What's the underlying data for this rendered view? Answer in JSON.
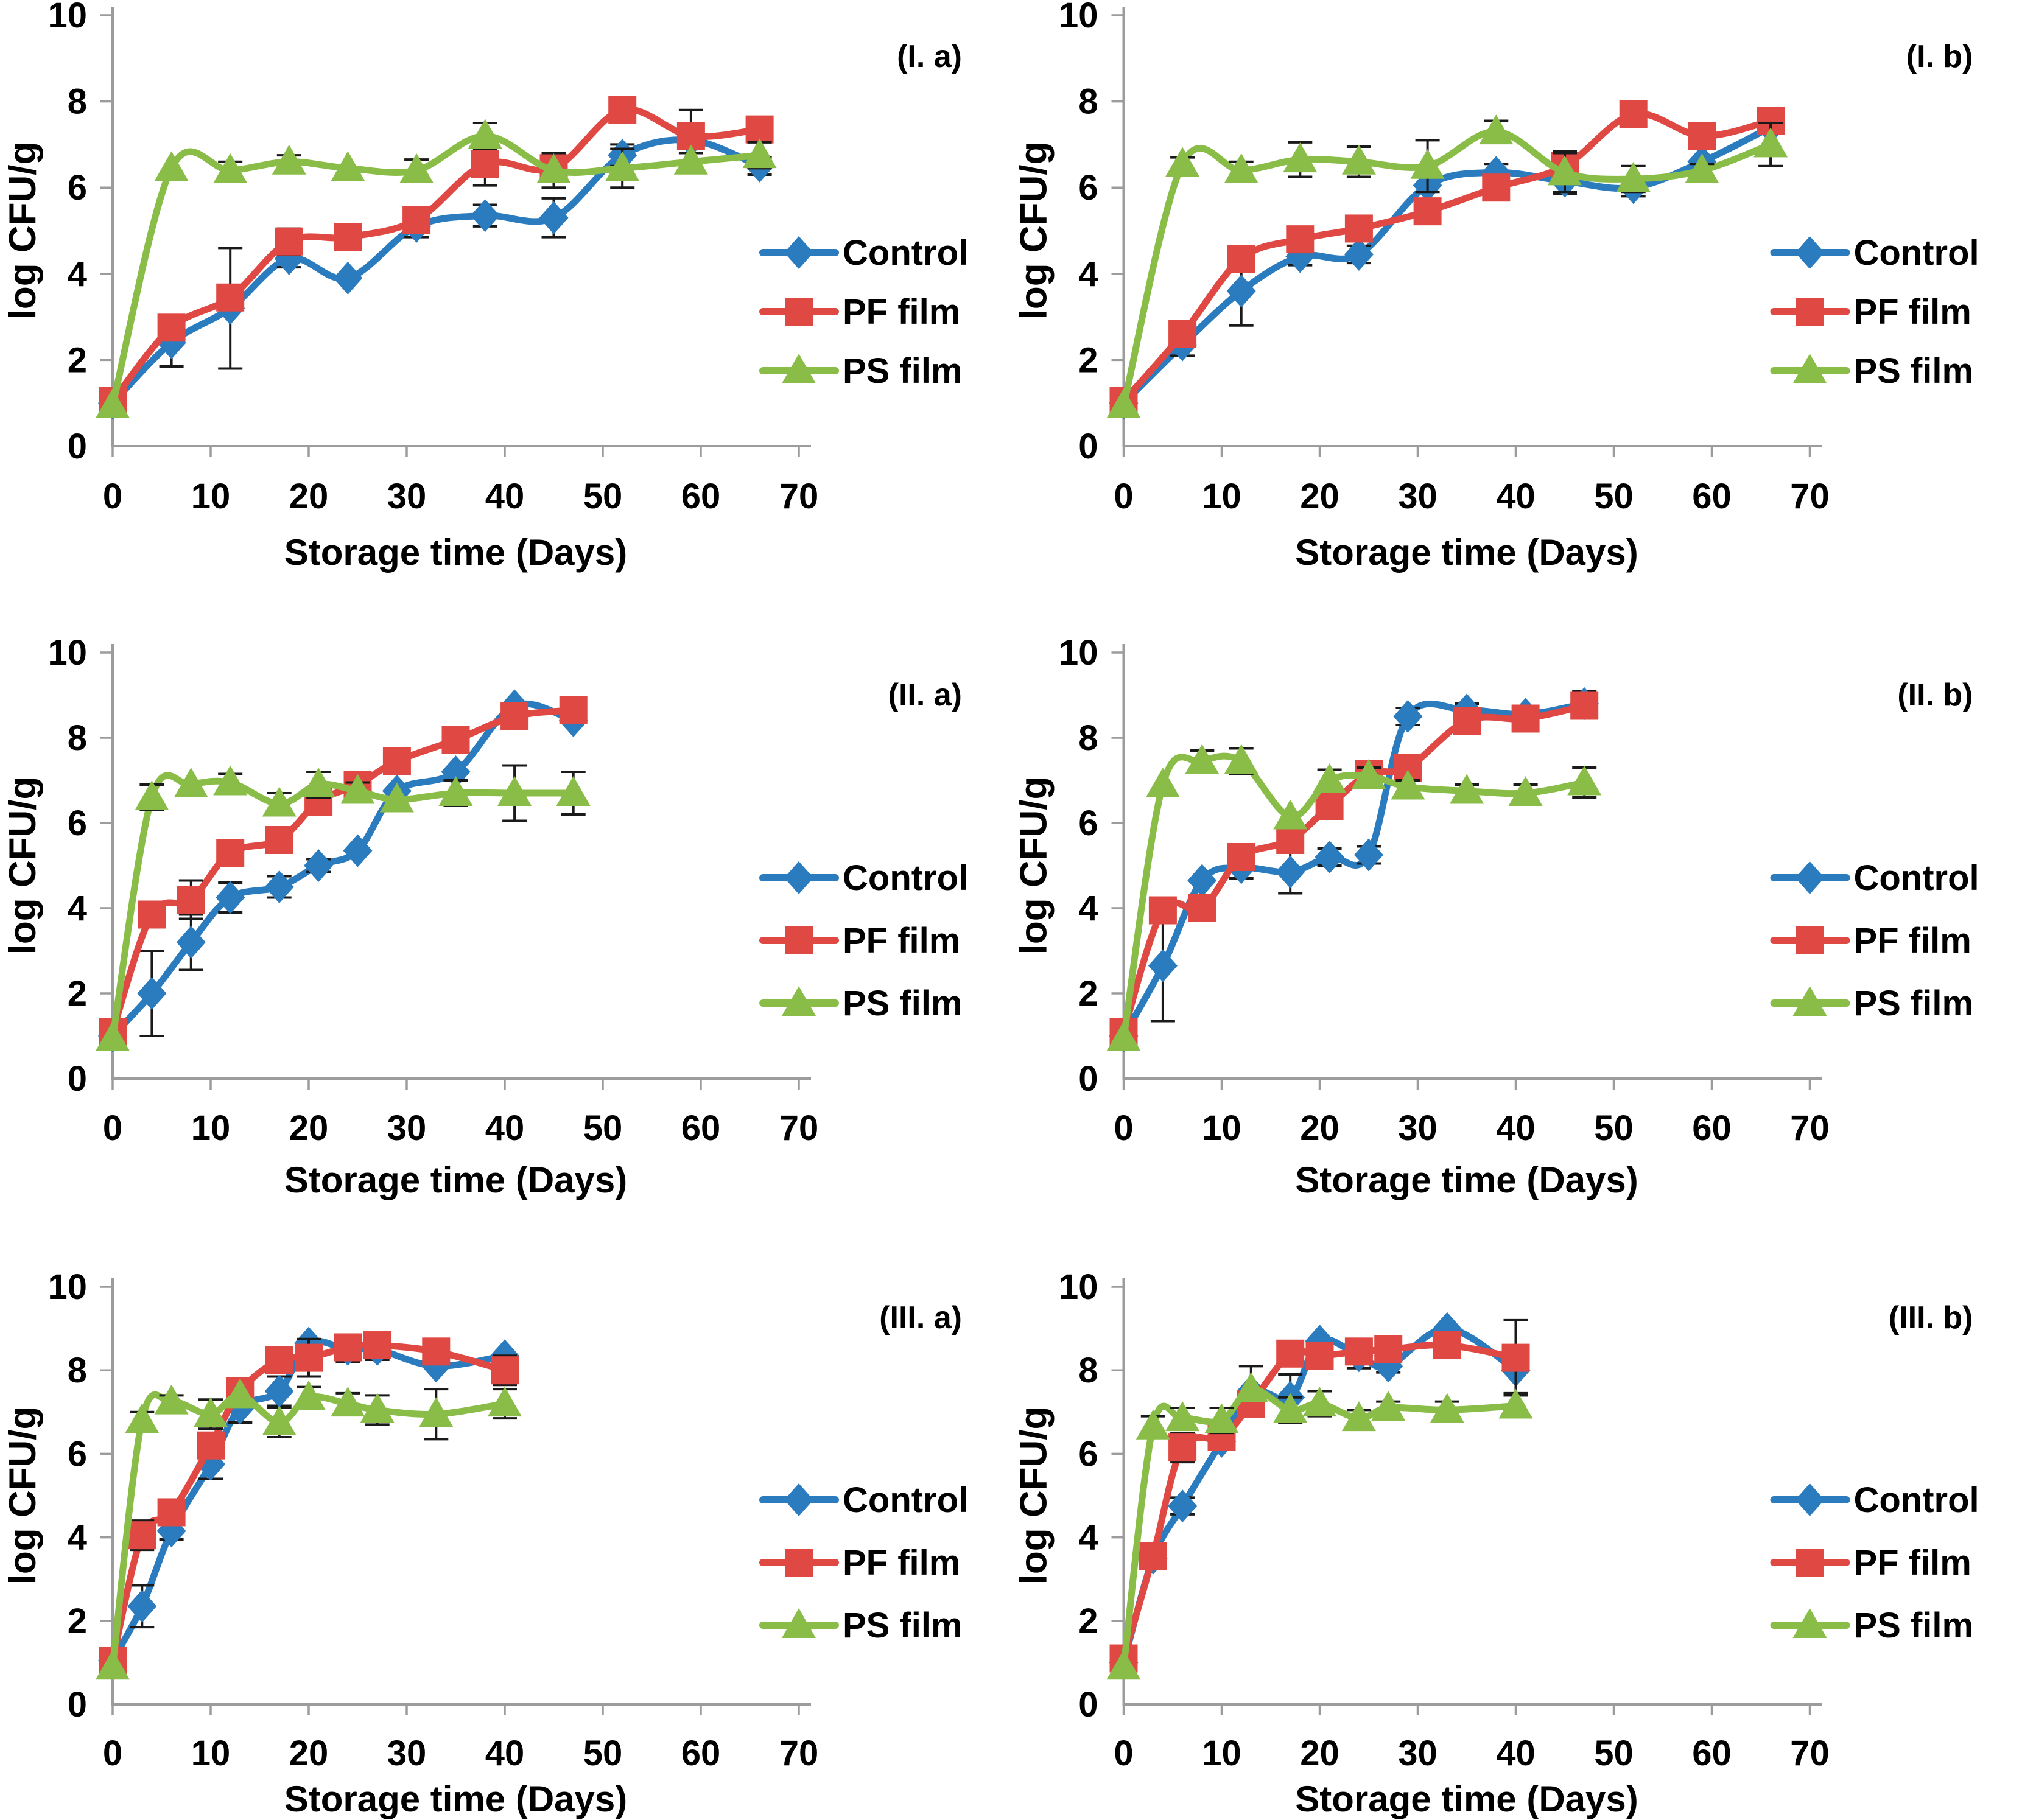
{
  "figure": {
    "background": "#ffffff",
    "axis_color": "#9c9c9c",
    "text_color": "#000000",
    "error_bar_color": "#1a1a1a",
    "series_colors": {
      "control": "#2b7bbf",
      "pf_film": "#e04843",
      "ps_film": "#8abd47"
    }
  },
  "chart_data": [
    {
      "type": "line",
      "panel_label": "(I. a)",
      "xlabel": "Storage time (Days)",
      "ylabel": "log CFU/g",
      "xlim": [
        0,
        70
      ],
      "ylim": [
        0,
        10
      ],
      "xticks": [
        0,
        10,
        20,
        30,
        40,
        50,
        60,
        70
      ],
      "yticks": [
        0,
        2,
        4,
        6,
        8,
        10
      ],
      "grid": false,
      "legend_position": "right",
      "x": [
        0,
        6,
        12,
        18,
        24,
        31,
        38,
        45,
        52,
        59,
        66
      ],
      "series": [
        {
          "name": "Control",
          "marker": "diamond",
          "color": "#2b7bbf",
          "values": [
            1.0,
            2.4,
            3.2,
            4.35,
            3.9,
            5.1,
            5.35,
            5.3,
            6.75,
            7.1,
            6.5
          ],
          "err": [
            0,
            0.55,
            1.4,
            0.2,
            0,
            0.25,
            0.25,
            0.45,
            0.25,
            0,
            0.2
          ]
        },
        {
          "name": "PF film",
          "marker": "square",
          "color": "#e04843",
          "values": [
            1.05,
            2.75,
            3.45,
            4.75,
            4.85,
            5.25,
            6.55,
            6.45,
            7.8,
            7.2,
            7.35
          ],
          "err": [
            0,
            0,
            0,
            0.3,
            0,
            0,
            0.5,
            0.2,
            0.2,
            0.6,
            0.25
          ]
        },
        {
          "name": "PS film",
          "marker": "triangle",
          "color": "#8abd47",
          "values": [
            0.95,
            6.45,
            6.4,
            6.6,
            6.45,
            6.4,
            7.2,
            6.4,
            6.45,
            6.6,
            6.75
          ],
          "err": [
            0,
            0,
            0.2,
            0.15,
            0,
            0.25,
            0.3,
            0.4,
            0.45,
            0.2,
            0.3
          ]
        }
      ]
    },
    {
      "type": "line",
      "panel_label": "(I. b)",
      "xlabel": "Storage time (Days)",
      "ylabel": "log CFU/g",
      "xlim": [
        0,
        70
      ],
      "ylim": [
        0,
        10
      ],
      "xticks": [
        0,
        10,
        20,
        30,
        40,
        50,
        60,
        70
      ],
      "yticks": [
        0,
        2,
        4,
        6,
        8,
        10
      ],
      "grid": false,
      "legend_position": "right",
      "x": [
        0,
        6,
        12,
        18,
        24,
        31,
        38,
        45,
        52,
        59,
        66
      ],
      "series": [
        {
          "name": "Control",
          "marker": "diamond",
          "color": "#2b7bbf",
          "values": [
            1.0,
            2.35,
            3.6,
            4.4,
            4.45,
            6.05,
            6.35,
            6.15,
            6.0,
            6.6,
            7.4
          ],
          "err": [
            0,
            0.25,
            0.8,
            0.2,
            0.2,
            0,
            0.2,
            0.3,
            0.2,
            0,
            0
          ]
        },
        {
          "name": "PF film",
          "marker": "square",
          "color": "#e04843",
          "values": [
            1.05,
            2.6,
            4.35,
            4.8,
            5.05,
            5.45,
            6.0,
            6.5,
            7.7,
            7.2,
            7.55
          ],
          "err": [
            0,
            0,
            0,
            0,
            0,
            0,
            0,
            0.35,
            0,
            0,
            0
          ]
        },
        {
          "name": "PS film",
          "marker": "triangle",
          "color": "#8abd47",
          "values": [
            0.95,
            6.55,
            6.4,
            6.65,
            6.6,
            6.5,
            7.3,
            6.35,
            6.2,
            6.4,
            7.0
          ],
          "err": [
            0,
            0.15,
            0.2,
            0.4,
            0.35,
            0.6,
            0.25,
            0.45,
            0.3,
            0.15,
            0.5
          ]
        }
      ]
    },
    {
      "type": "line",
      "panel_label": "(II. a)",
      "xlabel": "Storage time (Days)",
      "ylabel": "log CFU/g",
      "xlim": [
        0,
        70
      ],
      "ylim": [
        0,
        10
      ],
      "xticks": [
        0,
        10,
        20,
        30,
        40,
        50,
        60,
        70
      ],
      "yticks": [
        0,
        2,
        4,
        6,
        8,
        10
      ],
      "grid": false,
      "legend_position": "right",
      "x": [
        0,
        4,
        8,
        12,
        17,
        21,
        25,
        29,
        35,
        41,
        47
      ],
      "series": [
        {
          "name": "Control",
          "marker": "diamond",
          "color": "#2b7bbf",
          "values": [
            1.0,
            2.0,
            3.2,
            4.25,
            4.5,
            5.0,
            5.35,
            6.75,
            7.2,
            8.75,
            8.4
          ],
          "err": [
            0.15,
            1.0,
            0.65,
            0.35,
            0.25,
            0.15,
            0,
            0,
            0,
            0,
            0
          ]
        },
        {
          "name": "PF film",
          "marker": "square",
          "color": "#e04843",
          "values": [
            1.1,
            3.85,
            4.2,
            5.3,
            5.6,
            6.5,
            6.9,
            7.45,
            7.95,
            8.5,
            8.65
          ],
          "err": [
            0,
            0,
            0.45,
            0,
            0,
            0.3,
            0,
            0,
            0,
            0,
            0
          ]
        },
        {
          "name": "PS film",
          "marker": "triangle",
          "color": "#8abd47",
          "values": [
            0.95,
            6.6,
            6.9,
            6.95,
            6.45,
            6.9,
            6.75,
            6.55,
            6.7,
            6.7,
            6.7
          ],
          "err": [
            0,
            0.3,
            0,
            0.2,
            0.25,
            0.3,
            0.2,
            0,
            0.3,
            0.65,
            0.5
          ]
        }
      ]
    },
    {
      "type": "line",
      "panel_label": "(II. b)",
      "xlabel": "Storage time (Days)",
      "ylabel": "log CFU/g",
      "xlim": [
        0,
        70
      ],
      "ylim": [
        0,
        10
      ],
      "xticks": [
        0,
        10,
        20,
        30,
        40,
        50,
        60,
        70
      ],
      "yticks": [
        0,
        2,
        4,
        6,
        8,
        10
      ],
      "grid": false,
      "legend_position": "right",
      "x": [
        0,
        4,
        8,
        12,
        17,
        21,
        25,
        29,
        35,
        41,
        47
      ],
      "series": [
        {
          "name": "Control",
          "marker": "diamond",
          "color": "#2b7bbf",
          "values": [
            1.0,
            2.65,
            4.65,
            4.95,
            4.85,
            5.2,
            5.25,
            8.5,
            8.65,
            8.55,
            8.8
          ],
          "err": [
            0,
            1.3,
            0,
            0.25,
            0.5,
            0.2,
            0.2,
            0.2,
            0.15,
            0.15,
            0.3
          ]
        },
        {
          "name": "PF film",
          "marker": "square",
          "color": "#e04843",
          "values": [
            1.1,
            3.95,
            4.0,
            5.2,
            5.6,
            6.4,
            7.15,
            7.3,
            8.4,
            8.45,
            8.75
          ],
          "err": [
            0,
            0,
            0,
            0,
            0,
            0,
            0.25,
            0.2,
            0,
            0,
            0
          ]
        },
        {
          "name": "PS film",
          "marker": "triangle",
          "color": "#8abd47",
          "values": [
            0.95,
            6.9,
            7.45,
            7.45,
            6.15,
            7.0,
            7.1,
            6.85,
            6.75,
            6.7,
            6.95
          ],
          "err": [
            0,
            0,
            0.25,
            0.3,
            0,
            0.25,
            0.2,
            0.15,
            0.15,
            0.2,
            0.35
          ]
        }
      ]
    },
    {
      "type": "line",
      "panel_label": "(III. a)",
      "xlabel": "Storage time (Days)",
      "ylabel": "log CFU/g",
      "xlim": [
        0,
        70
      ],
      "ylim": [
        0,
        10
      ],
      "xticks": [
        0,
        10,
        20,
        30,
        40,
        50,
        60,
        70
      ],
      "yticks": [
        0,
        2,
        4,
        6,
        8,
        10
      ],
      "grid": false,
      "legend_position": "right",
      "x": [
        0,
        3,
        6,
        10,
        13,
        17,
        20,
        24,
        27,
        33,
        40
      ],
      "series": [
        {
          "name": "Control",
          "marker": "diamond",
          "color": "#2b7bbf",
          "values": [
            1.05,
            2.35,
            4.15,
            5.75,
            7.1,
            7.5,
            8.65,
            8.5,
            8.5,
            8.1,
            8.35
          ],
          "err": [
            0,
            0.5,
            0.2,
            0.35,
            0.35,
            0.35,
            0,
            0.3,
            0.25,
            0,
            0
          ]
        },
        {
          "name": "PF film",
          "marker": "square",
          "color": "#e04843",
          "values": [
            1.05,
            4.05,
            4.6,
            6.2,
            7.5,
            8.25,
            8.3,
            8.55,
            8.6,
            8.45,
            8.0
          ],
          "err": [
            0,
            0.35,
            0.25,
            0,
            0,
            0,
            0.45,
            0.2,
            0,
            0,
            0.35
          ]
        },
        {
          "name": "PS film",
          "marker": "triangle",
          "color": "#8abd47",
          "values": [
            0.9,
            6.8,
            7.25,
            6.95,
            7.4,
            6.75,
            7.35,
            7.2,
            7.05,
            6.95,
            7.2
          ],
          "err": [
            0,
            0.2,
            0.15,
            0.35,
            0,
            0.35,
            0.25,
            0.25,
            0.35,
            0.6,
            0.35
          ]
        }
      ]
    },
    {
      "type": "line",
      "panel_label": "(III. b)",
      "xlabel": "Storage time (Days)",
      "ylabel": "log CFU/g",
      "xlim": [
        0,
        70
      ],
      "ylim": [
        0,
        10
      ],
      "xticks": [
        0,
        10,
        20,
        30,
        40,
        50,
        60,
        70
      ],
      "yticks": [
        0,
        2,
        4,
        6,
        8,
        10
      ],
      "grid": false,
      "legend_position": "right",
      "x": [
        0,
        3,
        6,
        10,
        13,
        17,
        20,
        24,
        27,
        33,
        40
      ],
      "series": [
        {
          "name": "Control",
          "marker": "diamond",
          "color": "#2b7bbf",
          "values": [
            1.0,
            3.5,
            4.75,
            6.3,
            7.5,
            7.35,
            8.7,
            8.35,
            8.1,
            9.0,
            8.0
          ],
          "err": [
            0,
            0,
            0.2,
            0.2,
            0.6,
            0.55,
            0,
            0.3,
            0.15,
            0,
            0.55
          ]
        },
        {
          "name": "PF film",
          "marker": "square",
          "color": "#e04843",
          "values": [
            1.1,
            3.55,
            6.15,
            6.4,
            7.2,
            8.4,
            8.35,
            8.45,
            8.5,
            8.6,
            8.3
          ],
          "err": [
            0,
            0,
            0.35,
            0.25,
            0.3,
            0,
            0,
            0,
            0,
            0,
            0.9
          ]
        },
        {
          "name": "PS film",
          "marker": "triangle",
          "color": "#8abd47",
          "values": [
            0.9,
            6.65,
            6.85,
            6.8,
            7.55,
            7.05,
            7.2,
            6.85,
            7.1,
            7.05,
            7.15
          ],
          "err": [
            0,
            0.25,
            0.25,
            0.3,
            0,
            0.3,
            0.3,
            0.2,
            0.15,
            0.2,
            0.25
          ]
        }
      ]
    }
  ]
}
